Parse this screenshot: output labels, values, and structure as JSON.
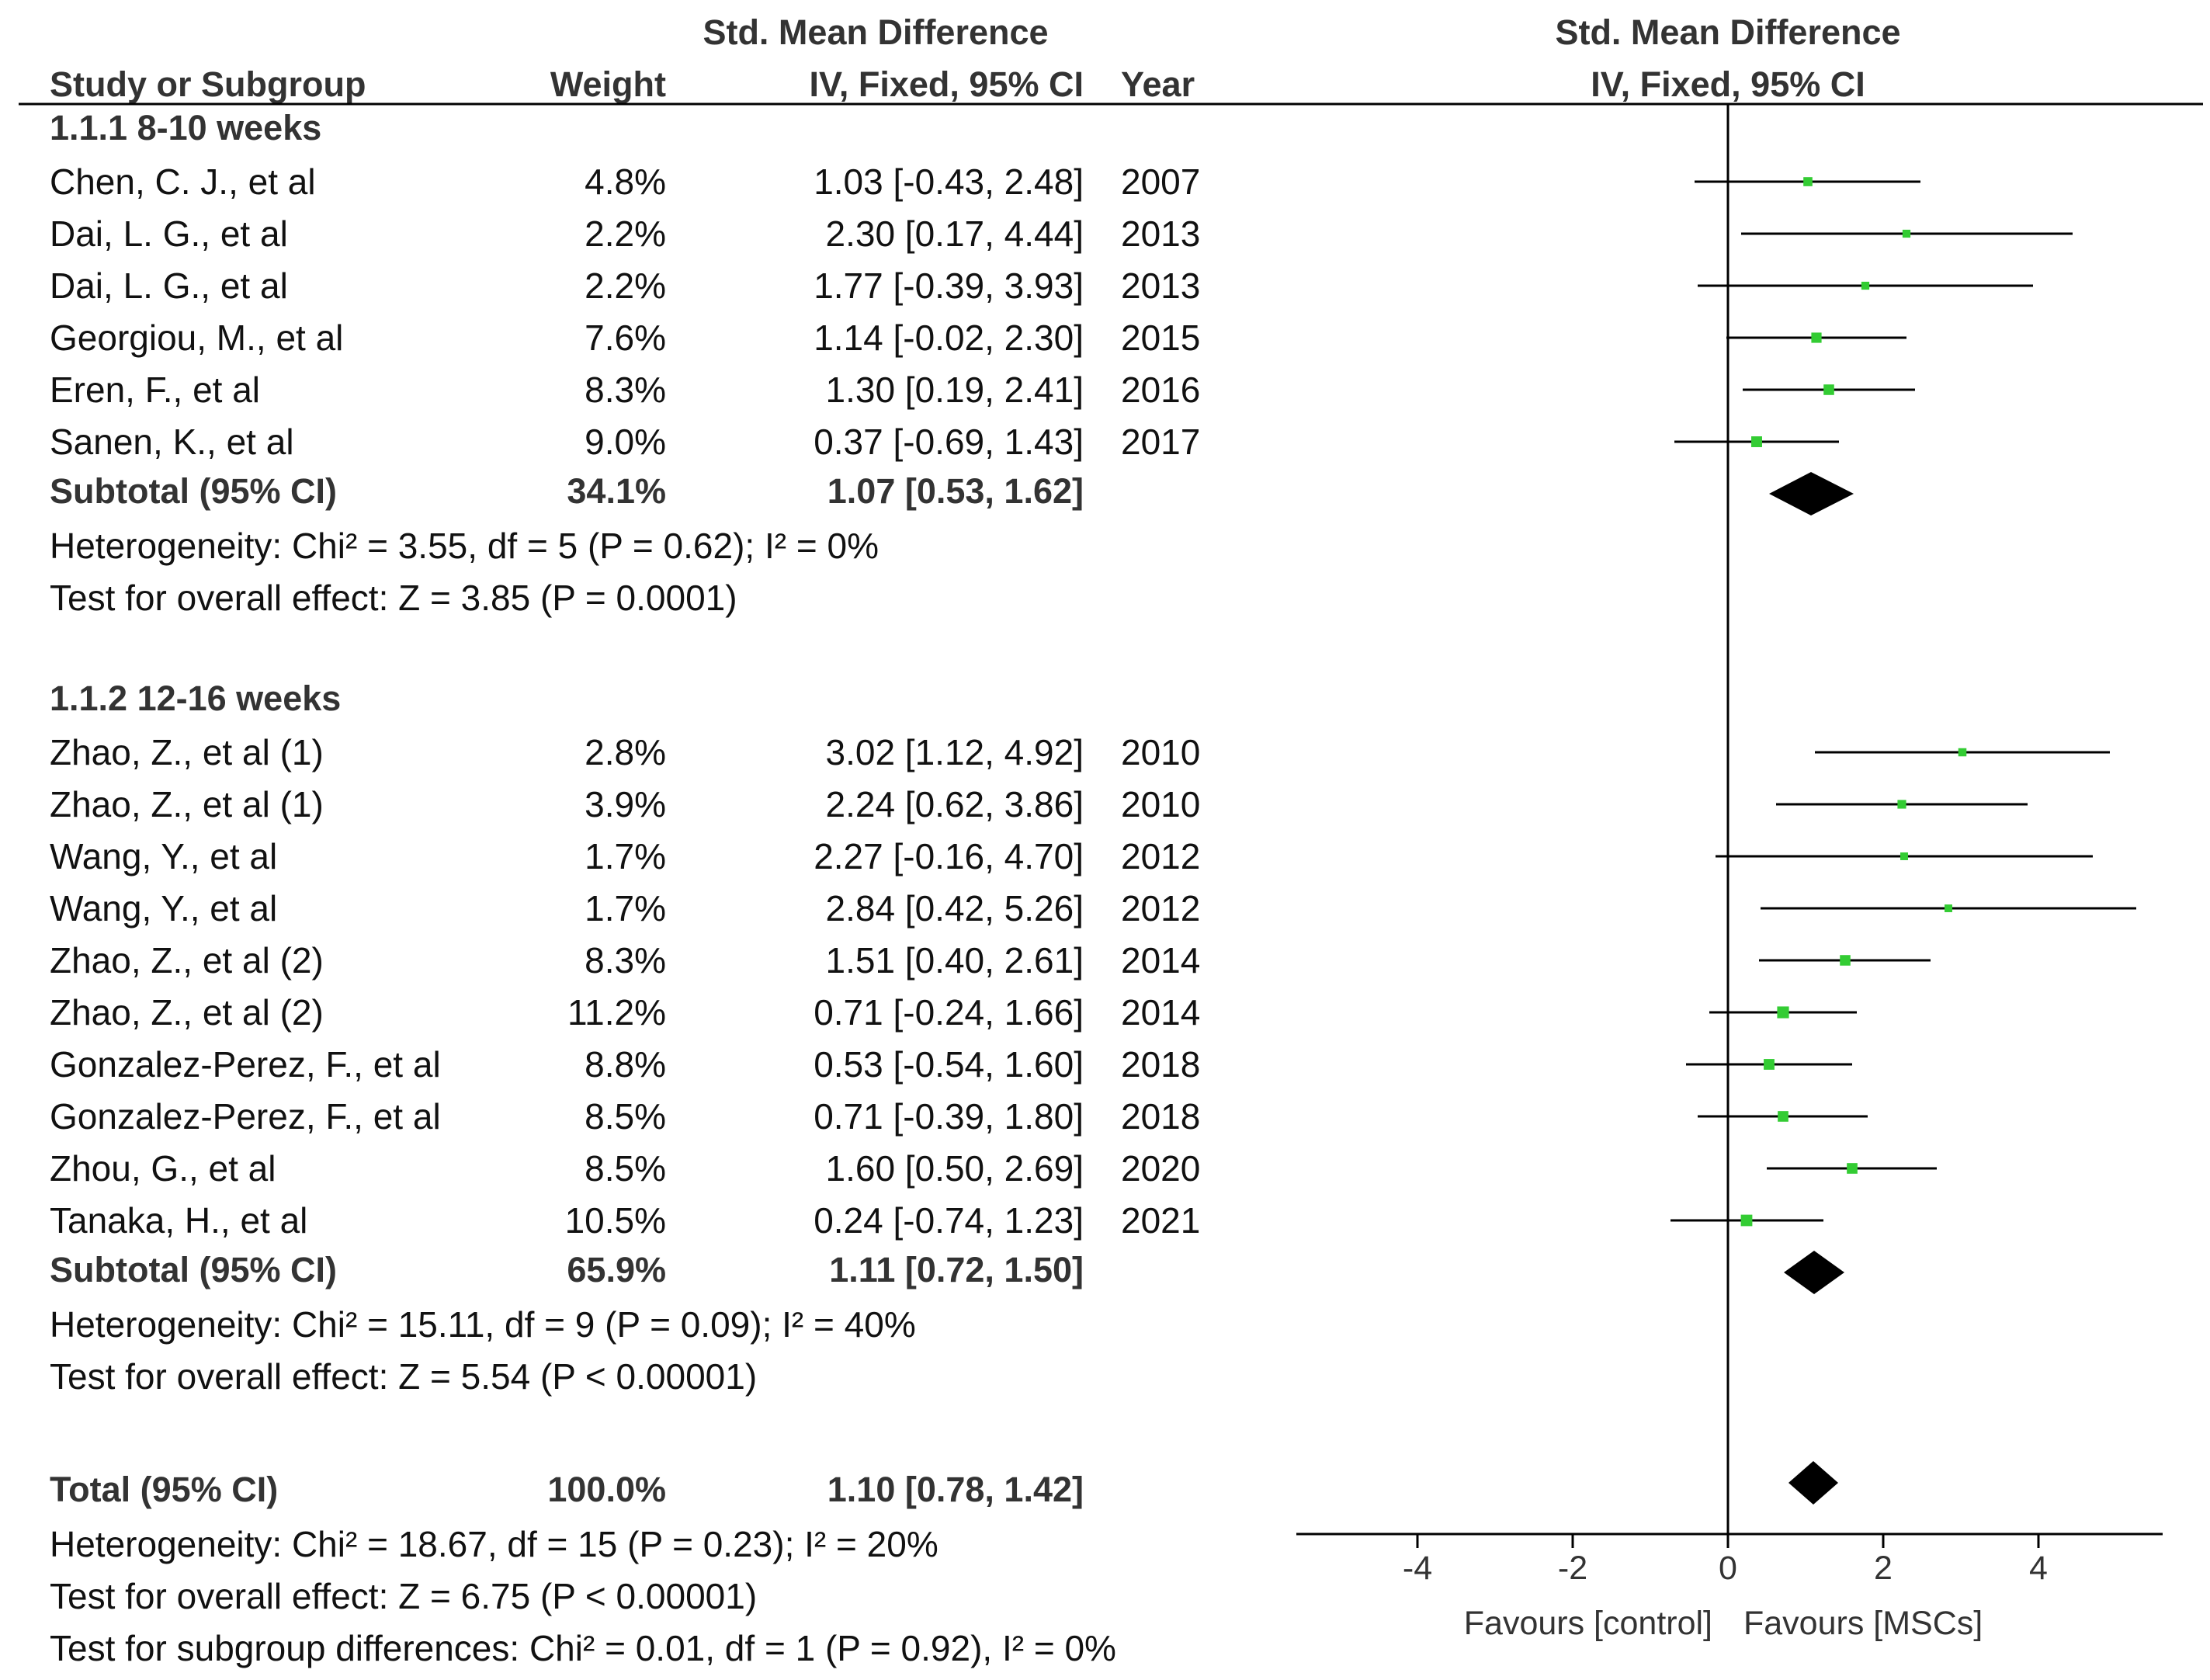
{
  "header": {
    "col_study": "Study or Subgroup",
    "col_weight": "Weight",
    "col_smd_line1": "Std. Mean Difference",
    "col_smd_line2": "IV, Fixed, 95% CI",
    "col_year": "Year",
    "plot_line1": "Std. Mean Difference",
    "plot_line2": "IV, Fixed, 95% CI"
  },
  "subgroups": [
    {
      "title": "1.1.1 8-10 weeks",
      "studies": [
        {
          "study": "Chen, C. J., et al",
          "weight": "4.8%",
          "ci_text": "1.03 [-0.43, 2.48]",
          "year": "2007",
          "est": 1.03,
          "lo": -0.43,
          "hi": 2.48
        },
        {
          "study": "Dai, L. G., et al",
          "weight": "2.2%",
          "ci_text": "2.30 [0.17, 4.44]",
          "year": "2013",
          "est": 2.3,
          "lo": 0.17,
          "hi": 4.44
        },
        {
          "study": "Dai, L. G., et al",
          "weight": "2.2%",
          "ci_text": "1.77 [-0.39, 3.93]",
          "year": "2013",
          "est": 1.77,
          "lo": -0.39,
          "hi": 3.93
        },
        {
          "study": "Georgiou, M., et al",
          "weight": "7.6%",
          "ci_text": "1.14 [-0.02, 2.30]",
          "year": "2015",
          "est": 1.14,
          "lo": -0.02,
          "hi": 2.3
        },
        {
          "study": "Eren, F., et al",
          "weight": "8.3%",
          "ci_text": "1.30 [0.19, 2.41]",
          "year": "2016",
          "est": 1.3,
          "lo": 0.19,
          "hi": 2.41
        },
        {
          "study": "Sanen, K., et al",
          "weight": "9.0%",
          "ci_text": "0.37 [-0.69, 1.43]",
          "year": "2017",
          "est": 0.37,
          "lo": -0.69,
          "hi": 1.43
        }
      ],
      "subtotal": {
        "label": "Subtotal (95% CI)",
        "weight": "34.1%",
        "ci_text": "1.07 [0.53, 1.62]",
        "est": 1.07,
        "lo": 0.53,
        "hi": 1.62
      },
      "heterogeneity": "Heterogeneity: Chi² = 3.55, df = 5 (P = 0.62); I² = 0%",
      "overall": "Test for overall effect: Z = 3.85 (P = 0.0001)"
    },
    {
      "title": "1.1.2 12-16 weeks",
      "studies": [
        {
          "study": "Zhao, Z., et al (1)",
          "weight": "2.8%",
          "ci_text": "3.02 [1.12, 4.92]",
          "year": "2010",
          "est": 3.02,
          "lo": 1.12,
          "hi": 4.92
        },
        {
          "study": "Zhao, Z., et al (1)",
          "weight": "3.9%",
          "ci_text": "2.24 [0.62, 3.86]",
          "year": "2010",
          "est": 2.24,
          "lo": 0.62,
          "hi": 3.86
        },
        {
          "study": "Wang, Y., et al",
          "weight": "1.7%",
          "ci_text": "2.27 [-0.16, 4.70]",
          "year": "2012",
          "est": 2.27,
          "lo": -0.16,
          "hi": 4.7
        },
        {
          "study": "Wang, Y., et al",
          "weight": "1.7%",
          "ci_text": "2.84 [0.42, 5.26]",
          "year": "2012",
          "est": 2.84,
          "lo": 0.42,
          "hi": 5.26
        },
        {
          "study": "Zhao, Z., et al (2)",
          "weight": "8.3%",
          "ci_text": "1.51 [0.40, 2.61]",
          "year": "2014",
          "est": 1.51,
          "lo": 0.4,
          "hi": 2.61
        },
        {
          "study": "Zhao, Z., et al (2)",
          "weight": "11.2%",
          "ci_text": "0.71 [-0.24, 1.66]",
          "year": "2014",
          "est": 0.71,
          "lo": -0.24,
          "hi": 1.66
        },
        {
          "study": "Gonzalez-Perez, F., et al",
          "weight": "8.8%",
          "ci_text": "0.53 [-0.54, 1.60]",
          "year": "2018",
          "est": 0.53,
          "lo": -0.54,
          "hi": 1.6
        },
        {
          "study": "Gonzalez-Perez, F., et al",
          "weight": "8.5%",
          "ci_text": "0.71 [-0.39, 1.80]",
          "year": "2018",
          "est": 0.71,
          "lo": -0.39,
          "hi": 1.8
        },
        {
          "study": "Zhou, G., et al",
          "weight": "8.5%",
          "ci_text": "1.60 [0.50, 2.69]",
          "year": "2020",
          "est": 1.6,
          "lo": 0.5,
          "hi": 2.69
        },
        {
          "study": "Tanaka, H., et al",
          "weight": "10.5%",
          "ci_text": "0.24 [-0.74, 1.23]",
          "year": "2021",
          "est": 0.24,
          "lo": -0.74,
          "hi": 1.23
        }
      ],
      "subtotal": {
        "label": "Subtotal (95% CI)",
        "weight": "65.9%",
        "ci_text": "1.11 [0.72, 1.50]",
        "est": 1.11,
        "lo": 0.72,
        "hi": 1.5
      },
      "heterogeneity": "Heterogeneity: Chi² = 15.11, df = 9 (P = 0.09); I² = 40%",
      "overall": "Test for overall effect: Z = 5.54 (P < 0.00001)"
    }
  ],
  "total": {
    "label": "Total (95% CI)",
    "weight": "100.0%",
    "ci_text": "1.10 [0.78, 1.42]",
    "est": 1.1,
    "lo": 0.78,
    "hi": 1.42,
    "heterogeneity": "Heterogeneity: Chi² = 18.67, df = 15 (P = 0.23); I² = 20%",
    "overall": "Test for overall effect: Z = 6.75 (P < 0.00001)",
    "subgroup_diff": "Test for subgroup differences: Chi² = 0.01, df = 1 (P = 0.92), I² = 0%"
  },
  "axis": {
    "ticks": [
      -4,
      -2,
      0,
      2,
      4
    ],
    "tick_labels": [
      "-4",
      "-2",
      "0",
      "2",
      "4"
    ],
    "favours_left": "Favours [control]",
    "favours_right": "Favours [MSCs]"
  },
  "chart_data": {
    "type": "forest",
    "title": "Std. Mean Difference",
    "subtitle": "IV, Fixed, 95% CI",
    "xlim": [
      -5.6,
      5.6
    ],
    "xticks": [
      -4,
      -2,
      0,
      2,
      4
    ],
    "xlabel_left": "Favours [control]",
    "xlabel_right": "Favours [MSCs]",
    "colors": {
      "marker": "#33cc33",
      "line": "#000000",
      "diamond": "#000000"
    }
  }
}
